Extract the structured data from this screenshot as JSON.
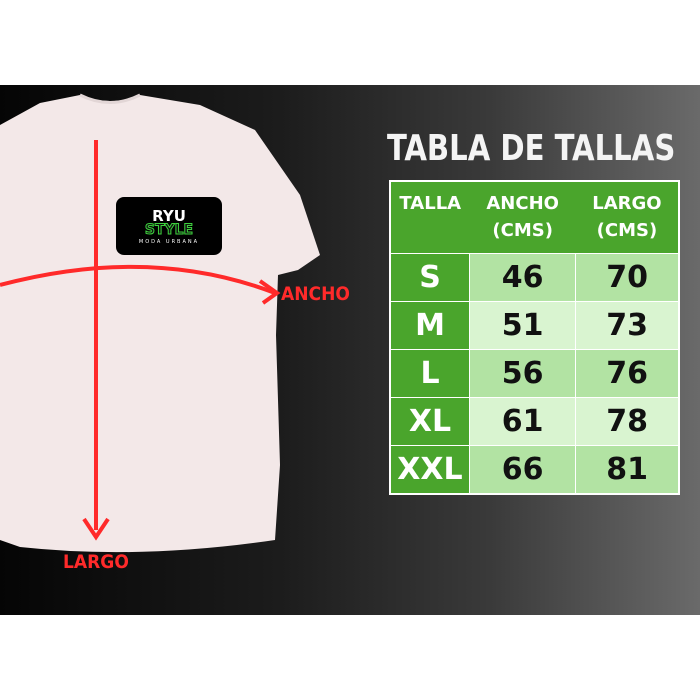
{
  "logo": {
    "line1": "RYU",
    "line2": "STYLE",
    "line3": "MODA URBANA"
  },
  "labels": {
    "width": "ANCHO",
    "length": "LARGO"
  },
  "title": "TABLA DE TALLAS",
  "table": {
    "headers": [
      "TALLA",
      "ANCHO\n(CMS)",
      "LARGO\n(CMS)"
    ],
    "header_lines": [
      [
        "TALLA"
      ],
      [
        "ANCHO",
        "(CMS)"
      ],
      [
        "LARGO",
        "(CMS)"
      ]
    ],
    "rows": [
      [
        "S",
        "46",
        "70"
      ],
      [
        "M",
        "51",
        "73"
      ],
      [
        "L",
        "56",
        "76"
      ],
      [
        "XL",
        "61",
        "78"
      ],
      [
        "XXL",
        "66",
        "81"
      ]
    ]
  },
  "colors": {
    "header_green": "#4aa52c",
    "row_light": "#b2e3a3",
    "row_lighter": "#d9f4d0",
    "arrow_red": "#ff2a2a",
    "shirt": "#f3e8e8"
  }
}
